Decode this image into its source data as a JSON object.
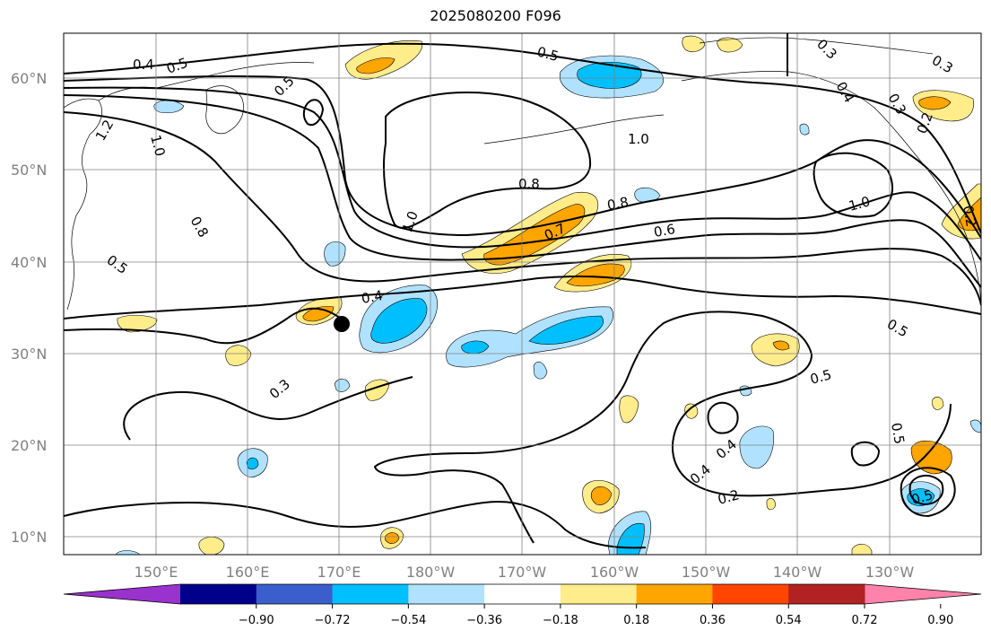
{
  "title": "2025080200 F096",
  "lat_labels": [
    "60°N",
    "50°N",
    "40°N",
    "30°N",
    "20°N",
    "10°N"
  ],
  "lon_labels": [
    "150°E",
    "160°E",
    "170°E",
    "180°W",
    "170°W",
    "160°W",
    "150°W",
    "140°W",
    "130°W"
  ],
  "contour_labels": [
    "0.4",
    "0.5",
    "0.5",
    "1.0",
    "1.2",
    "0.5",
    "0.3",
    "0.3",
    "0.3",
    "0.2",
    "0.4",
    "1.0",
    "0.8",
    "0.8",
    "0.7",
    "0.6",
    "1.0",
    "0.8",
    "1.0",
    "0.5",
    "0.4",
    "0.3",
    "0.5",
    "0.5",
    "0.5",
    "0.4",
    "0.4",
    "0.2",
    "0.5",
    "0.2"
  ],
  "colorbar": {
    "ticks": [
      "−0.90",
      "−0.72",
      "−0.54",
      "−0.36",
      "−0.18",
      "0.18",
      "0.36",
      "0.54",
      "0.72",
      "0.90"
    ],
    "colors": [
      "#9a32cd",
      "#00008b",
      "#3a5fcd",
      "#00bfff",
      "#b0e2ff",
      "#ffffff",
      "#ffec8b",
      "#ffa500",
      "#ff4500",
      "#b22222",
      "#ff82ab"
    ]
  },
  "marker": {
    "type": "storm-center-dot",
    "lon": "170°E",
    "lat": "33°N"
  }
}
